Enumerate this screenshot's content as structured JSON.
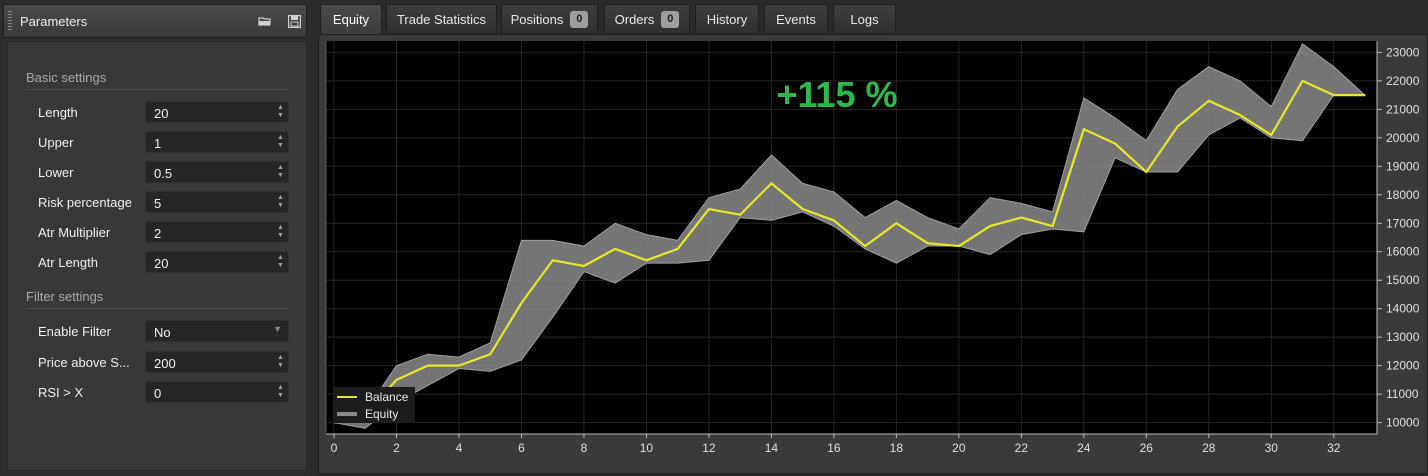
{
  "panel": {
    "title": "Parameters",
    "sections": [
      {
        "title": "Basic settings"
      },
      {
        "title": "Filter settings"
      }
    ],
    "basic": [
      {
        "label": "Length",
        "value": "20"
      },
      {
        "label": "Upper",
        "value": "1"
      },
      {
        "label": "Lower",
        "value": "0.5"
      },
      {
        "label": "Risk percentage",
        "value": "5"
      },
      {
        "label": "Atr Multiplier",
        "value": "2"
      },
      {
        "label": "Atr Length",
        "value": "20"
      }
    ],
    "filter": [
      {
        "label": "Enable Filter",
        "value": "No"
      },
      {
        "label": "Price above S...",
        "value": "200"
      },
      {
        "label": "RSI > X",
        "value": "0"
      }
    ]
  },
  "tabs": [
    {
      "label": "Equity",
      "active": true
    },
    {
      "label": "Trade Statistics"
    },
    {
      "label": "Positions",
      "badge": "0"
    },
    {
      "label": "Orders",
      "badge": "0"
    },
    {
      "label": "History"
    },
    {
      "label": "Events"
    },
    {
      "label": "Logs"
    }
  ],
  "chart": {
    "annotation": "+115 %",
    "annotation_color": "#2eb84c",
    "balance_color": "#e8e82a",
    "equity_band_color": "#8a8a8a"
  },
  "chart_data": {
    "type": "line",
    "x": [
      0,
      1,
      2,
      3,
      4,
      5,
      6,
      7,
      8,
      9,
      10,
      11,
      12,
      13,
      14,
      15,
      16,
      17,
      18,
      19,
      20,
      21,
      22,
      23,
      24,
      25,
      26,
      27,
      28,
      29,
      30,
      31,
      32,
      33
    ],
    "xlim": [
      0,
      33
    ],
    "ylim": [
      9600,
      23400
    ],
    "x_ticks": [
      "0",
      "2",
      "4",
      "6",
      "8",
      "10",
      "12",
      "14",
      "16",
      "18",
      "20",
      "22",
      "24",
      "26",
      "28",
      "30",
      "32"
    ],
    "y_ticks": [
      "10000",
      "11000",
      "12000",
      "13000",
      "14000",
      "15000",
      "16000",
      "17000",
      "18000",
      "19000",
      "20000",
      "21000",
      "22000",
      "23000"
    ],
    "legend": [
      "Balance",
      "Equity"
    ],
    "legend_position": "bottom-left",
    "grid": true,
    "series": [
      {
        "name": "Balance",
        "values": [
          10000,
          10300,
          11500,
          12000,
          12000,
          12400,
          14200,
          15700,
          15500,
          16100,
          15700,
          16100,
          17500,
          17300,
          18400,
          17500,
          17100,
          16200,
          17000,
          16300,
          16200,
          16900,
          17200,
          16900,
          20300,
          19800,
          18800,
          20400,
          21300,
          20800,
          20100,
          22000,
          21500,
          21500
        ]
      },
      {
        "name": "Equity",
        "band": true,
        "upper": [
          10000,
          10400,
          12000,
          12400,
          12300,
          12800,
          16400,
          16400,
          16200,
          17000,
          16600,
          16400,
          17900,
          18200,
          19400,
          18400,
          18100,
          17200,
          17800,
          17200,
          16800,
          17900,
          17700,
          17400,
          21400,
          20700,
          19900,
          21700,
          22500,
          22000,
          21100,
          23300,
          22500,
          21500
        ],
        "lower": [
          10000,
          9800,
          10700,
          11300,
          11900,
          11800,
          12200,
          13700,
          15300,
          14900,
          15600,
          15600,
          15700,
          17200,
          17100,
          17400,
          16900,
          16100,
          15600,
          16200,
          16200,
          15900,
          16600,
          16800,
          16700,
          19300,
          18800,
          18800,
          20100,
          20700,
          20000,
          19900,
          21500,
          21500
        ]
      }
    ]
  }
}
